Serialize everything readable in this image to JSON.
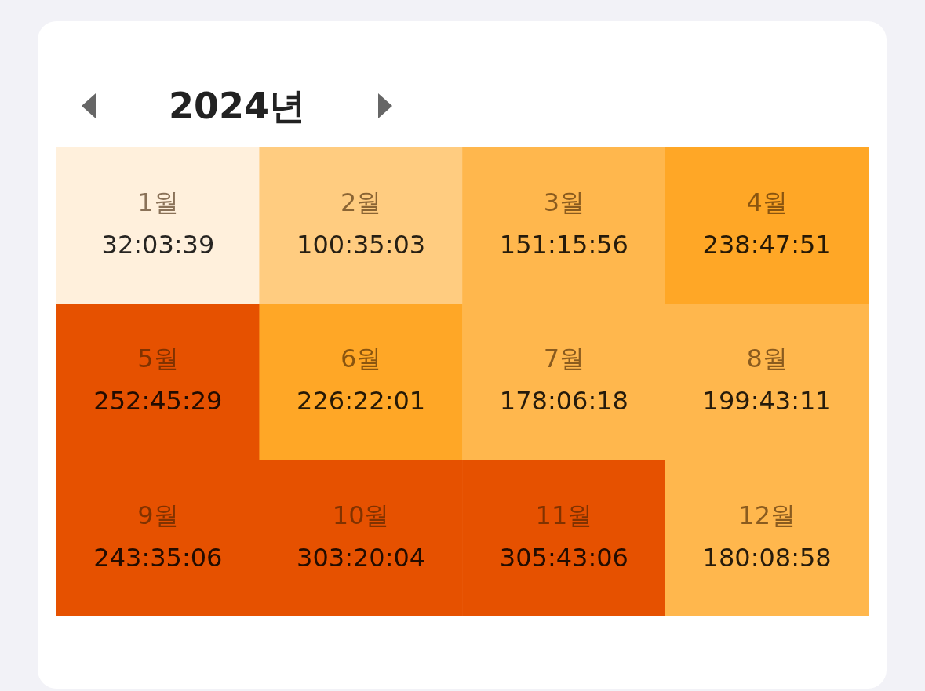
{
  "chart_data": {
    "type": "heatmap",
    "title": "2024년",
    "categories": [
      null,
      null,
      null,
      null
    ],
    "y_categories": [
      null,
      null,
      null
    ],
    "cells": [
      [
        32.060833,
        100.584167,
        151.265556,
        238.7975
      ],
      [
        252.758056,
        226.366944,
        178.105,
        199.719722
      ],
      [
        243.585,
        303.334444,
        305.718333,
        180.149444
      ]
    ],
    "cell_labels": [
      [
        "32:03:39",
        "100:35:03",
        "151:15:56",
        "238:47:51"
      ],
      [
        "252:45:29",
        "226:22:01",
        "178:06:18",
        "199:43:11"
      ],
      [
        "243:35:06",
        "303:20:04",
        "305:43:06",
        "180:08:58"
      ]
    ],
    "annotations": [
      "1월",
      "2월",
      "3월",
      "4월",
      "5월",
      "6월",
      "7월",
      "8월",
      "9월",
      "10월",
      "11월",
      "12월"
    ],
    "tick_labels": false
  }
}
